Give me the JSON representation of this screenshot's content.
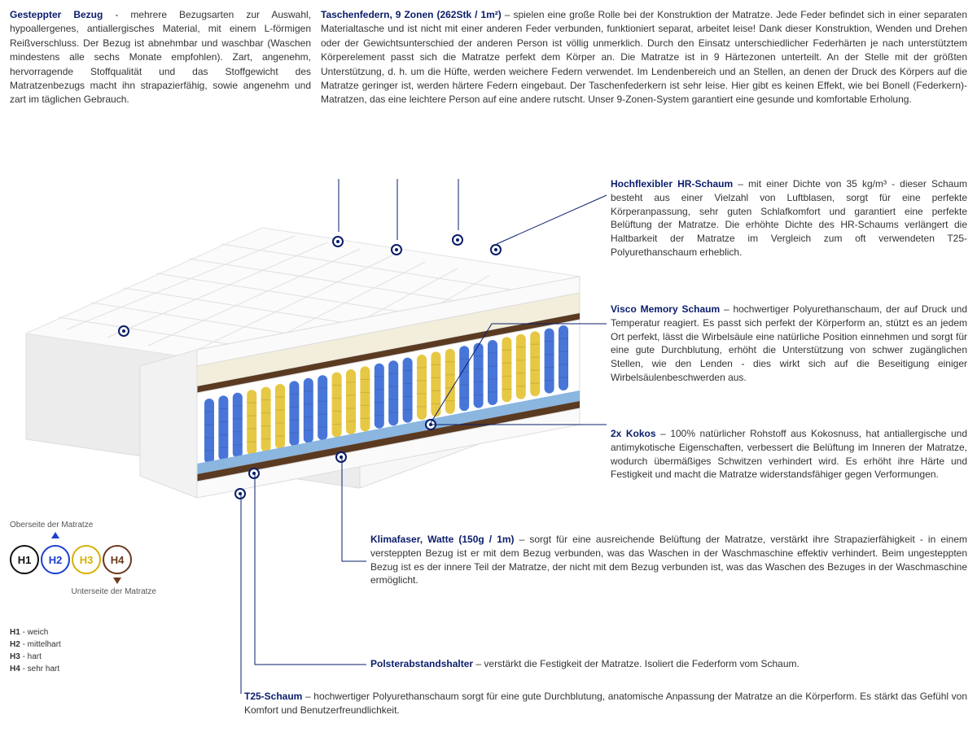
{
  "colors": {
    "heading": "#0a1d6b",
    "text": "#333333",
    "spring_blue": "#3e6fd6",
    "spring_yellow": "#e6c53a",
    "coco": "#5b3a22",
    "foam_cream": "#f2eedb",
    "foam_white": "#f5f5f5",
    "foam_blue": "#8ab6e0"
  },
  "top": {
    "left": {
      "title": "Gesteppter Bezug",
      "sep": " - ",
      "body": "mehrere Bezugsarten zur Auswahl, hypoallergenes, antiallergisches Material, mit einem L-förmigen Reißverschluss. Der Bezug ist abnehmbar und waschbar (Waschen mindestens alle sechs Monate empfohlen). Zart, angenehm, hervorragende Stoffqualität und das Stoffgewicht des Matratzenbezugs macht ihn strapazierfähig, sowie angenehm und zart im täglichen Gebrauch."
    },
    "right": {
      "title": "Taschenfedern, 9 Zonen (262Stk / 1m²)",
      "sep": " – ",
      "body": "spielen eine große Rolle bei der Konstruktion der Matratze. Jede Feder befindet sich in einer separaten Materialtasche und ist nicht mit einer anderen Feder verbunden, funktioniert separat, arbeitet leise! Dank dieser Konstruktion, Wenden und Drehen oder der Gewichtsunterschied der anderen Person ist völlig unmerklich. Durch den Einsatz unterschiedlicher Federhärten je nach unterstütztem Körperelement passt sich die Matratze perfekt dem Körper an. Die Matratze ist in 9 Härtezonen unterteilt. An der Stelle mit der größten Unterstützung, d. h. um die Hüfte, werden weichere Federn verwendet. Im Lendenbereich und an Stellen, an denen der Druck des Körpers auf die Matratze geringer ist, werden härtere Federn eingebaut. Der Taschenfederkern ist sehr leise. Hier gibt es keinen Effekt, wie bei Bonell (Federkern)- Matratzen, das eine leichtere Person auf eine andere rutscht. Unser 9-Zonen-System garantiert eine gesunde und komfortable Erholung."
    }
  },
  "desc": {
    "hr": {
      "title": "Hochflexibler HR-Schaum",
      "sep": " – ",
      "body": "mit einer Dichte von 35 kg/m³ - dieser Schaum besteht aus einer Vielzahl von Luftblasen, sorgt für eine perfekte Körperanpassung, sehr guten Schlafkomfort und garantiert eine perfekte Belüftung der Matratze. Die erhöhte Dichte des HR-Schaums verlängert die Haltbarkeit der Matratze im Vergleich zum oft verwendeten T25-Polyurethanschaum erheblich."
    },
    "visco": {
      "title": "Visco Memory Schaum",
      "sep": " – ",
      "body": "hochwertiger Polyurethanschaum, der auf Druck und Temperatur reagiert. Es passt sich perfekt der Körperform an, stützt es an jedem Ort perfekt, lässt die Wirbelsäule eine natürliche Position einnehmen und sorgt für eine gute Durchblutung, erhöht die Unterstützung von schwer zugänglichen Stellen, wie den Lenden - dies wirkt sich auf die Beseitigung einiger Wirbelsäulenbeschwerden aus."
    },
    "kokos": {
      "title": "2x Kokos",
      "sep": " – ",
      "body": "100% natürlicher Rohstoff aus Kokosnuss, hat antiallergische und antimykotische Eigenschaften, verbessert die Belüftung im Inneren der Matratze, wodurch übermäßiges Schwitzen verhindert wird. Es erhöht ihre Härte und Festigkeit und macht die Matratze widerstandsfähiger gegen Verformungen."
    },
    "klima": {
      "title": "Klimafaser, Watte (150g / 1m)",
      "sep": " – ",
      "body": "sorgt für eine ausreichende Belüftung der Matratze, verstärkt ihre Strapazierfähigkeit - in einem versteppten Bezug ist er mit dem Bezug verbunden, was das Waschen in der Waschmaschine effektiv verhindert. Beim ungesteppten Bezug ist es der innere Teil der Matratze, der nicht mit dem Bezug verbunden ist, was das Waschen des Bezuges in der Waschmaschine ermöglicht."
    },
    "polster": {
      "title": "Polsterabstandshalter",
      "sep": " – ",
      "body": "verstärkt die Festigkeit der Matratze. Isoliert die Federform vom Schaum."
    },
    "t25": {
      "title": "T25-Schaum",
      "sep": " – ",
      "body": "hochwertiger Polyurethanschaum sorgt für eine gute Durchblutung, anatomische Anpassung der Matratze an die Körperform. Es stärkt das Gefühl von Komfort und Benutzerfreundlichkeit."
    }
  },
  "firmness": {
    "top_label": "Oberseite der Matratze",
    "bottom_label": "Unterseite der Matratze",
    "circles": [
      {
        "label": "H1",
        "color": "#111111"
      },
      {
        "label": "H2",
        "color": "#1d3fd1"
      },
      {
        "label": "H3",
        "color": "#d6b200"
      },
      {
        "label": "H4",
        "color": "#6b3a1f"
      }
    ],
    "selected_top_index": 1,
    "selected_bottom_index": 3,
    "legend": [
      {
        "k": "H1",
        "v": "weich"
      },
      {
        "k": "H2",
        "v": "mittelhart"
      },
      {
        "k": "H3",
        "v": "hart"
      },
      {
        "k": "H4",
        "v": "sehr hart"
      }
    ]
  }
}
